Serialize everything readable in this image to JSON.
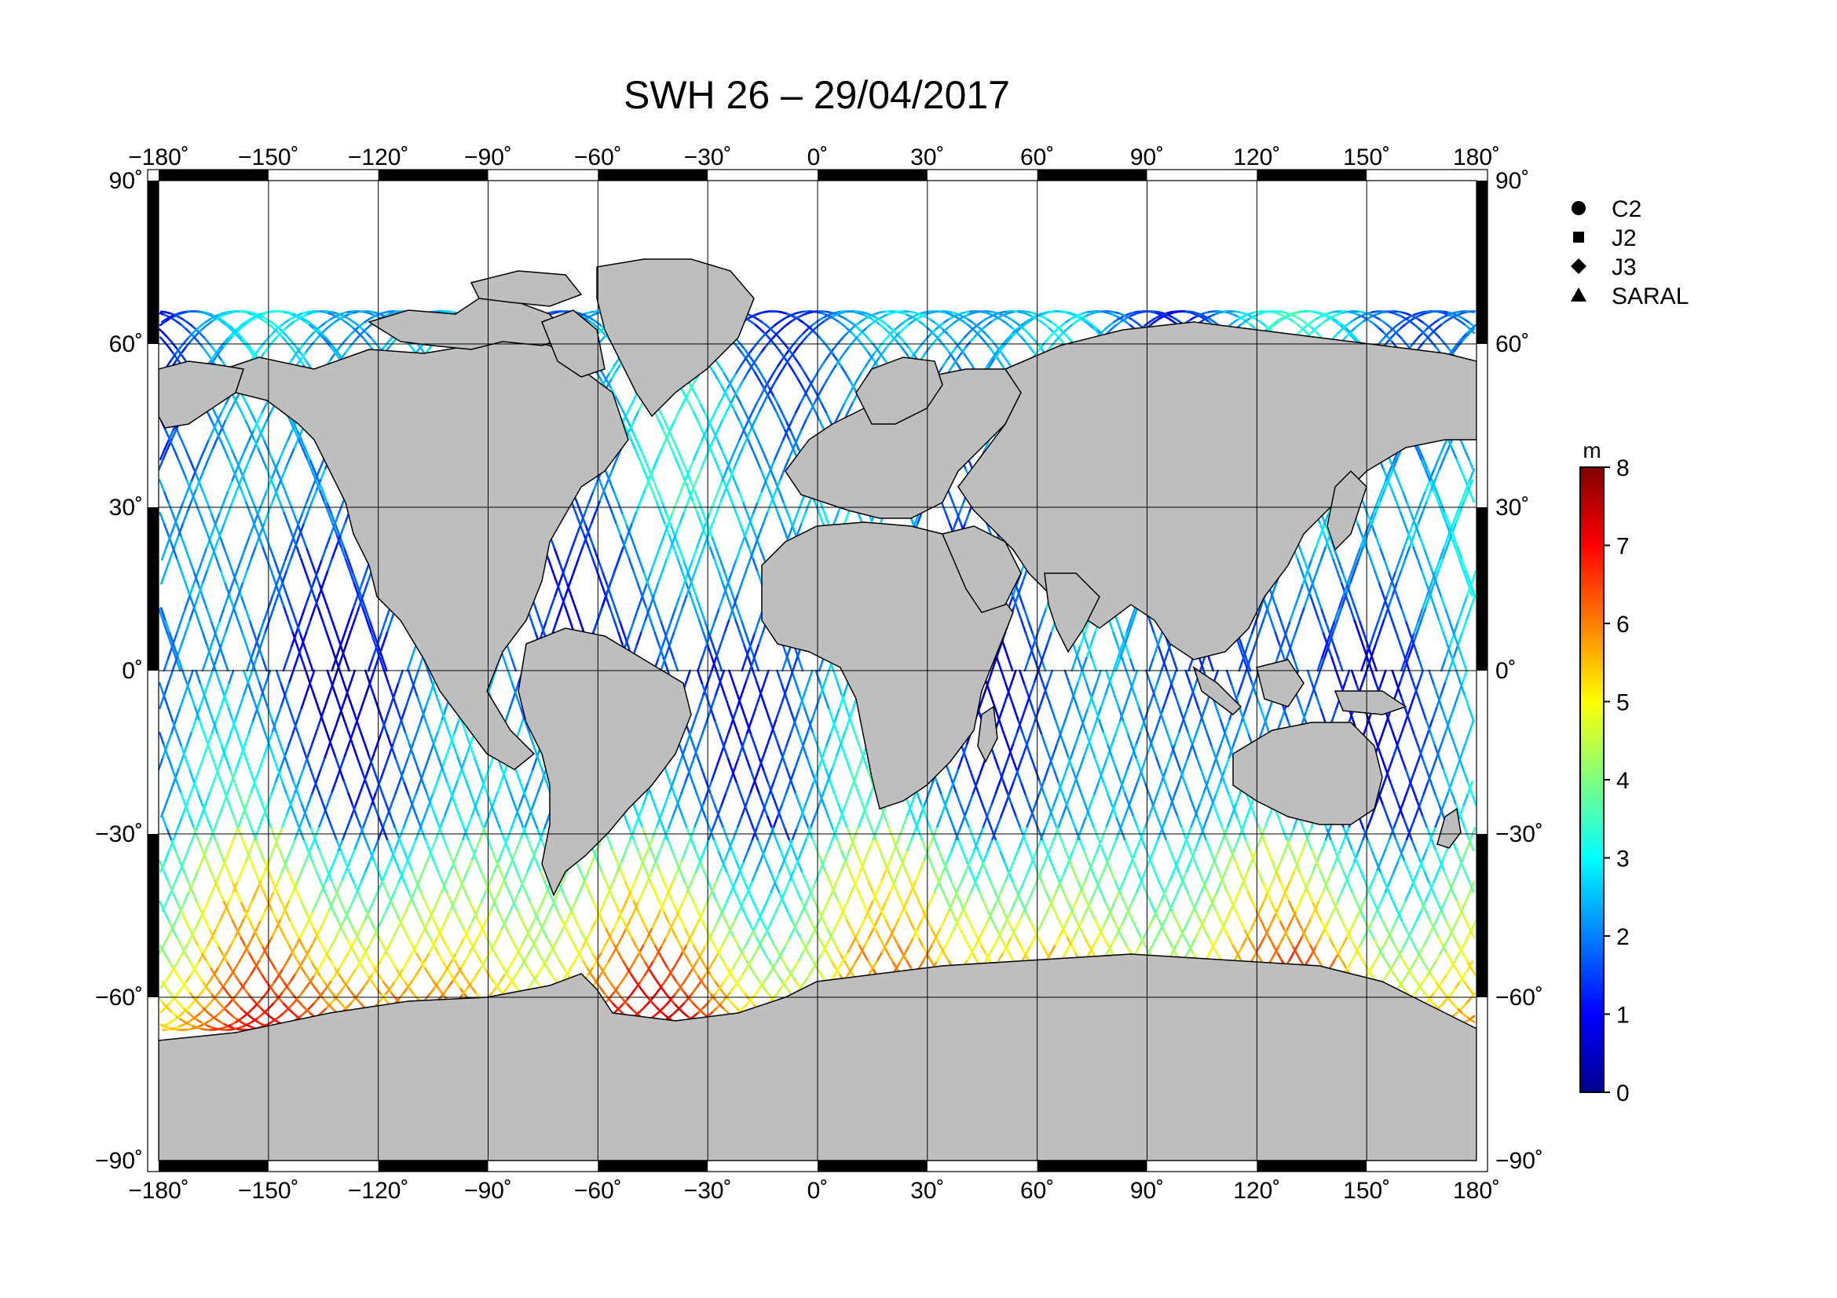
{
  "title": "SWH 26 – 29/04/2017",
  "axes": {
    "lon_ticks": [
      "−180˚",
      "−150˚",
      "−120˚",
      "−90˚",
      "−60˚",
      "−30˚",
      "0˚",
      "30˚",
      "60˚",
      "90˚",
      "120˚",
      "150˚",
      "180˚"
    ],
    "lat_ticks": [
      "90˚",
      "60˚",
      "30˚",
      "0˚",
      "−30˚",
      "−60˚",
      "−90˚"
    ],
    "lon_values": [
      -180,
      -150,
      -120,
      -90,
      -60,
      -30,
      0,
      30,
      60,
      90,
      120,
      150,
      180
    ],
    "lat_values": [
      90,
      60,
      30,
      0,
      -30,
      -60,
      -90
    ],
    "xlim": [
      -180,
      180
    ],
    "ylim": [
      -90,
      90
    ],
    "grid": true
  },
  "legend": {
    "placement": "right",
    "items": [
      {
        "symbol": "circle",
        "label": "C2"
      },
      {
        "symbol": "square",
        "label": "J2"
      },
      {
        "symbol": "diamond",
        "label": "J3"
      },
      {
        "symbol": "triangle",
        "label": "SARAL"
      }
    ]
  },
  "colorbar": {
    "unit": "m",
    "min": 0,
    "max": 8,
    "ticks": [
      "0",
      "1",
      "2",
      "3",
      "4",
      "5",
      "6",
      "7",
      "8"
    ],
    "colormap": "jet",
    "colors": [
      "#00008f",
      "#0000ff",
      "#0080ff",
      "#00ffff",
      "#80ff80",
      "#ffff00",
      "#ff8000",
      "#ff0000",
      "#800000"
    ]
  },
  "colors": {
    "land": "#bebebe",
    "ocean": "#ffffff",
    "coast": "#000000",
    "frame_dark": "#000000"
  }
}
